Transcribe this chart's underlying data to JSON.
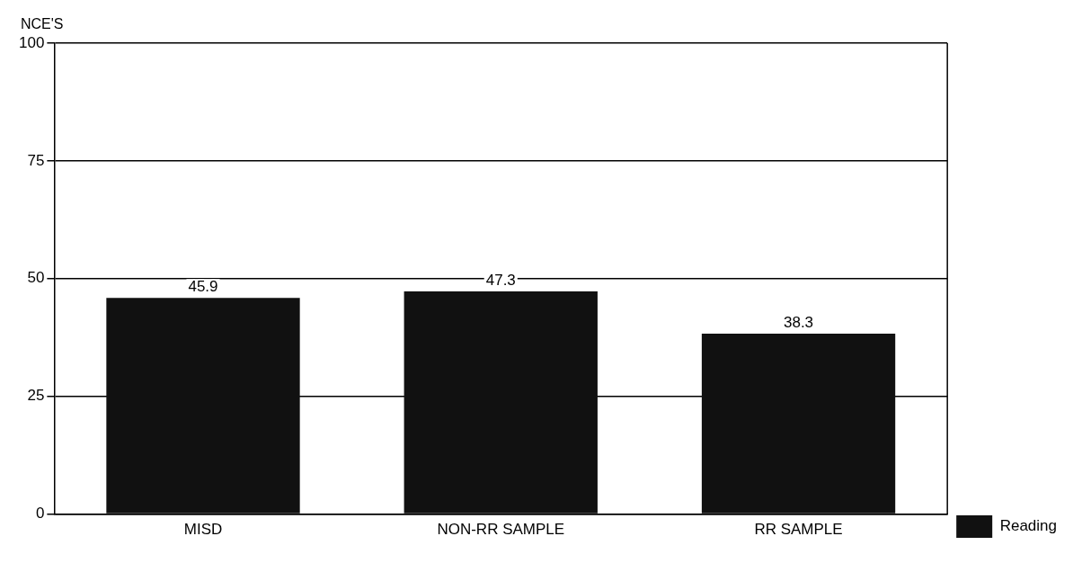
{
  "chart_data": {
    "type": "bar",
    "ylabel": "NCE'S",
    "categories": [
      "MISD",
      "NON-RR SAMPLE",
      "RR SAMPLE"
    ],
    "series": [
      {
        "name": "Reading",
        "color": "#111111",
        "values": [
          45.9,
          47.3,
          38.3
        ]
      }
    ],
    "ylim": [
      0,
      100
    ],
    "yticks": [
      0,
      25,
      50,
      75,
      100
    ],
    "grid": "y",
    "legend": "bottom right",
    "data_labels": true
  }
}
